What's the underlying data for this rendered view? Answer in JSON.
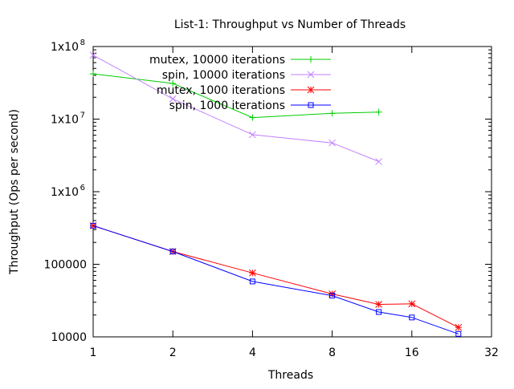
{
  "chart_data": {
    "type": "line",
    "title": "List-1: Throughput vs Number of Threads",
    "xlabel": "Threads",
    "ylabel": "Throughput (Ops per second)",
    "x_scale": "log2",
    "y_scale": "log10",
    "xlim": [
      1,
      32
    ],
    "ylim": [
      10000,
      100000000
    ],
    "x_ticks": [
      {
        "value": 1,
        "label": "1"
      },
      {
        "value": 2,
        "label": "2"
      },
      {
        "value": 4,
        "label": "4"
      },
      {
        "value": 8,
        "label": "8"
      },
      {
        "value": 16,
        "label": "16"
      },
      {
        "value": 32,
        "label": "32"
      }
    ],
    "y_ticks": [
      {
        "value": 10000,
        "label": "10000"
      },
      {
        "value": 100000,
        "label": "100000"
      },
      {
        "value": 1000000,
        "label": "1x10",
        "exp": "6"
      },
      {
        "value": 10000000,
        "label": "1x10",
        "exp": "7"
      },
      {
        "value": 100000000,
        "label": "1x10",
        "exp": "8"
      }
    ],
    "grid": false,
    "legend_position": "top-right",
    "series": [
      {
        "name": "mutex, 10000 iterations",
        "color": "#00cc00",
        "marker": "plus",
        "points": [
          [
            1,
            42000000
          ],
          [
            2,
            31000000
          ],
          [
            4,
            10500000
          ],
          [
            8,
            12000000
          ],
          [
            12,
            12500000
          ]
        ]
      },
      {
        "name": "spin, 10000 iterations",
        "color": "#c080ff",
        "marker": "cross",
        "points": [
          [
            1,
            76000000
          ],
          [
            2,
            19000000
          ],
          [
            4,
            6100000
          ],
          [
            8,
            4700000
          ],
          [
            12,
            2600000
          ]
        ]
      },
      {
        "name": "mutex, 1000 iterations",
        "color": "#ff0000",
        "marker": "star",
        "points": [
          [
            1,
            340000
          ],
          [
            2,
            150000
          ],
          [
            4,
            76000
          ],
          [
            8,
            39000
          ],
          [
            12,
            28000
          ],
          [
            16,
            28500
          ],
          [
            24,
            13500
          ]
        ]
      },
      {
        "name": "spin, 1000 iterations",
        "color": "#0000ff",
        "marker": "square",
        "points": [
          [
            1,
            340000
          ],
          [
            2,
            150000
          ],
          [
            4,
            58000
          ],
          [
            8,
            37000
          ],
          [
            12,
            22000
          ],
          [
            16,
            18500
          ],
          [
            24,
            11000
          ]
        ]
      }
    ]
  }
}
